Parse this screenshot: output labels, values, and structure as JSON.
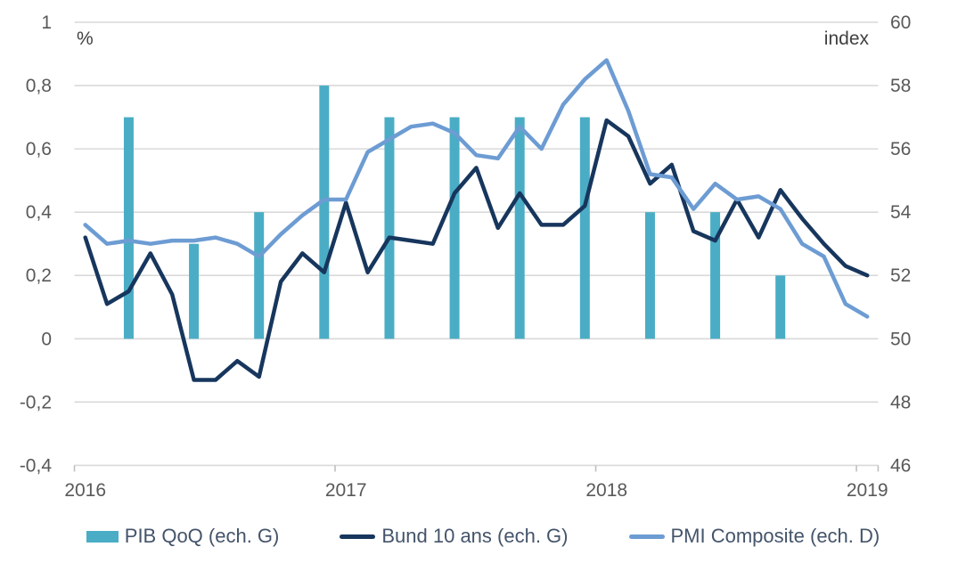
{
  "chart": {
    "left_axis_unit": "%",
    "right_axis_unit": "index",
    "left_axis_ticks": [
      "1",
      "0,8",
      "0,6",
      "0,4",
      "0,2",
      "0",
      "-0,2",
      "-0,4"
    ],
    "right_axis_ticks": [
      "60",
      "58",
      "56",
      "54",
      "52",
      "50",
      "48",
      "46"
    ],
    "x_axis_labels": [
      "2016",
      "2017",
      "2018",
      "2019"
    ],
    "colors": {
      "bar": "#4AADC5",
      "bund_line": "#17365D",
      "pmi_line": "#6D9CD3",
      "gridline": "#D9D9D9",
      "tick_mark": "#BFBFBF",
      "axis_text": "#595959",
      "legend_text": "#44546A",
      "background": "#FFFFFF"
    }
  },
  "chart_data": {
    "type": "combo",
    "x_months": [
      "2016-01",
      "2016-02",
      "2016-03",
      "2016-04",
      "2016-05",
      "2016-06",
      "2016-07",
      "2016-08",
      "2016-09",
      "2016-10",
      "2016-11",
      "2016-12",
      "2017-01",
      "2017-02",
      "2017-03",
      "2017-04",
      "2017-05",
      "2017-06",
      "2017-07",
      "2017-08",
      "2017-09",
      "2017-10",
      "2017-11",
      "2017-12",
      "2018-01",
      "2018-02",
      "2018-03",
      "2018-04",
      "2018-05",
      "2018-06",
      "2018-07",
      "2018-08",
      "2018-09",
      "2018-10",
      "2018-11",
      "2018-12",
      "2019-01"
    ],
    "left_ylim": [
      -0.4,
      1.0
    ],
    "right_ylim": [
      46,
      60
    ],
    "grid": true,
    "legend_position": "bottom",
    "series": [
      {
        "name": "PIB QoQ (ech. G)",
        "type": "bar",
        "axis": "left",
        "categories": [
          "2016-T1",
          "2016-T2",
          "2016-T3",
          "2016-T4",
          "2017-T1",
          "2017-T2",
          "2017-T3",
          "2017-T4",
          "2018-T1",
          "2018-T2",
          "2018-T3"
        ],
        "month_index": [
          2,
          5,
          8,
          11,
          14,
          17,
          20,
          23,
          26,
          29,
          32
        ],
        "values": [
          0.7,
          0.3,
          0.4,
          0.8,
          0.7,
          0.7,
          0.7,
          0.7,
          0.4,
          0.4,
          0.2
        ]
      },
      {
        "name": "Bund 10 ans (ech. G)",
        "type": "line",
        "axis": "left",
        "values": [
          0.32,
          0.11,
          0.15,
          0.27,
          0.14,
          -0.13,
          -0.13,
          -0.07,
          -0.12,
          0.18,
          0.27,
          0.21,
          0.43,
          0.21,
          0.32,
          0.31,
          0.3,
          0.46,
          0.54,
          0.35,
          0.46,
          0.36,
          0.36,
          0.42,
          0.69,
          0.64,
          0.49,
          0.55,
          0.34,
          0.31,
          0.44,
          0.32,
          0.47,
          0.38,
          0.3,
          0.23,
          0.2
        ]
      },
      {
        "name": "PMI Composite (ech. D)",
        "type": "line",
        "axis": "right",
        "values": [
          53.6,
          53.0,
          53.1,
          53.0,
          53.1,
          53.1,
          53.2,
          53.0,
          52.6,
          53.3,
          53.9,
          54.4,
          54.4,
          55.9,
          56.3,
          56.7,
          56.8,
          56.5,
          55.8,
          55.7,
          56.7,
          56.0,
          57.4,
          58.2,
          58.8,
          57.2,
          55.2,
          55.1,
          54.1,
          54.9,
          54.4,
          54.5,
          54.1,
          53.0,
          52.6,
          51.1,
          50.7
        ]
      }
    ]
  }
}
